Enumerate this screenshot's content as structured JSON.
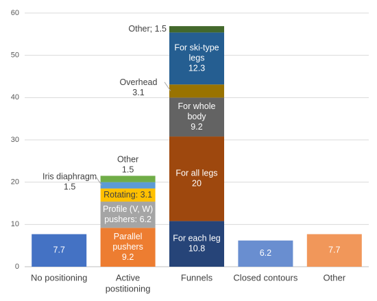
{
  "chart_data": {
    "type": "bar",
    "stacked": true,
    "title": "",
    "xlabel": "",
    "ylabel": "",
    "ylim": [
      0,
      60
    ],
    "yticks": [
      "0",
      "10",
      "20",
      "30",
      "40",
      "50",
      "60"
    ],
    "grid": true,
    "legend": "none",
    "categories": [
      {
        "label": [
          "No positioning"
        ],
        "segments": [
          {
            "name": "No positioning",
            "value": 7.7,
            "color": "#4472C4",
            "label_lines": [
              "7.7"
            ],
            "label_color": "#ffffff",
            "label_pos": "inside"
          }
        ]
      },
      {
        "label": [
          "Active",
          "postitioning"
        ],
        "segments": [
          {
            "name": "Parallel pushers",
            "value": 9.2,
            "color": "#ED7D31",
            "label_lines": [
              "Parallel",
              "pushers",
              "9.2"
            ],
            "label_color": "#ffffff",
            "label_pos": "inside"
          },
          {
            "name": "Profile (V, W) pushers",
            "value": 6.2,
            "color": "#A5A5A5",
            "label_lines": [
              "Profile (V, W)",
              "pushers: 6.2"
            ],
            "label_color": "#ffffff",
            "label_pos": "inside"
          },
          {
            "name": "Rotating",
            "value": 3.1,
            "color": "#FFC000",
            "label_lines": [
              "Rotating: 3.1"
            ],
            "label_color": "#404040",
            "label_pos": "inside"
          },
          {
            "name": "Iris diaphragm",
            "value": 1.5,
            "color": "#5B9BD5",
            "label_lines": [
              "Iris diaphragm",
              "1.5"
            ],
            "label_color": "#404040",
            "label_pos": "left"
          },
          {
            "name": "Other",
            "value": 1.5,
            "color": "#70AD47",
            "label_lines": [
              "Other",
              "1.5"
            ],
            "label_color": "#404040",
            "label_pos": "above"
          }
        ]
      },
      {
        "label": [
          "Funnels"
        ],
        "segments": [
          {
            "name": "For each leg",
            "value": 10.8,
            "color": "#264478",
            "label_lines": [
              "For each leg",
              "10.8"
            ],
            "label_color": "#ffffff",
            "label_pos": "inside"
          },
          {
            "name": "For all legs",
            "value": 20,
            "color": "#9E480E",
            "label_lines": [
              "For all legs",
              "20"
            ],
            "label_color": "#ffffff",
            "label_pos": "inside"
          },
          {
            "name": "For whole body",
            "value": 9.2,
            "color": "#636363",
            "label_lines": [
              "For whole",
              "body",
              "9.2"
            ],
            "label_color": "#ffffff",
            "label_pos": "inside"
          },
          {
            "name": "Overhead",
            "value": 3.1,
            "color": "#997300",
            "label_lines": [
              "Overhead",
              "3.1"
            ],
            "label_color": "#404040",
            "label_pos": "left"
          },
          {
            "name": "For ski-type legs",
            "value": 12.3,
            "color": "#255E91",
            "label_lines": [
              "For ski-type",
              "legs",
              "12.3"
            ],
            "label_color": "#ffffff",
            "label_pos": "inside"
          },
          {
            "name": "Other",
            "value": 1.5,
            "color": "#43682B",
            "label_lines": [
              "Other; 1.5"
            ],
            "label_color": "#404040",
            "label_pos": "left"
          }
        ]
      },
      {
        "label": [
          "Closed contours"
        ],
        "segments": [
          {
            "name": "Closed contours",
            "value": 6.2,
            "color": "#698ED0",
            "label_lines": [
              "6.2"
            ],
            "label_color": "#ffffff",
            "label_pos": "inside"
          }
        ]
      },
      {
        "label": [
          "Other"
        ],
        "segments": [
          {
            "name": "Other",
            "value": 7.7,
            "color": "#F1975A",
            "label_lines": [
              "7.7"
            ],
            "label_color": "#ffffff",
            "label_pos": "inside"
          }
        ]
      }
    ]
  }
}
